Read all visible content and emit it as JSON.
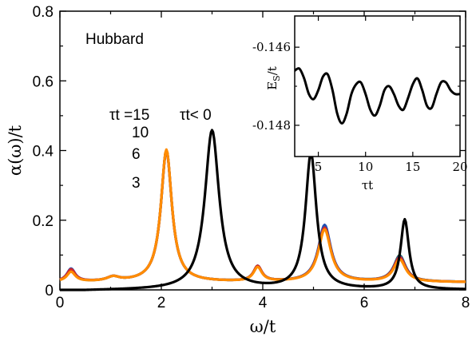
{
  "chart_data": [
    {
      "type": "line",
      "title": "",
      "xlabel": "ω/t",
      "ylabel": "α(ω)/t",
      "xlim": [
        0,
        8
      ],
      "ylim": [
        0,
        0.8
      ],
      "xticks": [
        "0",
        "2",
        "4",
        "6",
        "8"
      ],
      "yticks": [
        "0",
        "0.2",
        "0.4",
        "0.6",
        "0.8"
      ],
      "grid": false,
      "annotations": {
        "model": "Hubbard",
        "tau_label": "τt =15",
        "tau_values": [
          "10",
          "6",
          "3"
        ],
        "negative_label": "τt< 0"
      },
      "series_colors": [
        "#000000",
        "#2e7d32",
        "#1f4fb4",
        "#d62728",
        "#ff8c00"
      ],
      "series": [
        {
          "name": "τt< 0",
          "peaks": [
            [
              3.0,
              0.457,
              0.17
            ],
            [
              4.95,
              0.39,
              0.13
            ],
            [
              6.8,
              0.2,
              0.1
            ]
          ],
          "baseline": 0.0
        },
        {
          "name": "15",
          "peaks": [
            [
              0.22,
              0.03,
              0.1
            ],
            [
              1.05,
              0.012,
              0.15
            ],
            [
              2.1,
              0.378,
              0.13
            ],
            [
              3.9,
              0.043,
              0.1
            ],
            [
              5.22,
              0.16,
              0.15
            ],
            [
              6.7,
              0.075,
              0.14
            ]
          ],
          "baseline": 0.022
        },
        {
          "name": "10",
          "peaks": [
            [
              0.22,
              0.037,
              0.1
            ],
            [
              1.05,
              0.012,
              0.15
            ],
            [
              2.1,
              0.378,
              0.13
            ],
            [
              3.9,
              0.043,
              0.1
            ],
            [
              5.22,
              0.163,
              0.15
            ],
            [
              6.7,
              0.073,
              0.14
            ]
          ],
          "baseline": 0.022
        },
        {
          "name": "6",
          "peaks": [
            [
              0.22,
              0.035,
              0.1
            ],
            [
              1.05,
              0.012,
              0.15
            ],
            [
              2.1,
              0.378,
              0.13
            ],
            [
              3.9,
              0.043,
              0.1
            ],
            [
              5.22,
              0.155,
              0.15
            ],
            [
              6.7,
              0.07,
              0.14
            ]
          ],
          "baseline": 0.022
        },
        {
          "name": "3",
          "peaks": [
            [
              0.22,
              0.028,
              0.1
            ],
            [
              1.05,
              0.012,
              0.15
            ],
            [
              2.1,
              0.38,
              0.13
            ],
            [
              3.9,
              0.04,
              0.1
            ],
            [
              5.22,
              0.15,
              0.15
            ],
            [
              6.7,
              0.064,
              0.14
            ]
          ],
          "baseline": 0.022
        }
      ]
    },
    {
      "type": "line",
      "title": "",
      "xlabel": "τt",
      "ylabel": "E_S/t",
      "xlim": [
        2.5,
        20
      ],
      "ylim": [
        -0.1488,
        -0.1452
      ],
      "xticks": [
        "5",
        "10",
        "15",
        "20"
      ],
      "yticks": [
        "-0.146",
        "-0.148"
      ],
      "grid": false,
      "series": [
        {
          "name": "",
          "x": [
            2.5,
            3.0,
            3.5,
            4.0,
            4.5,
            5.0,
            5.5,
            6.0,
            6.5,
            7.0,
            7.5,
            8.0,
            8.5,
            9.0,
            9.5,
            10.0,
            10.5,
            11.0,
            11.5,
            12.0,
            12.5,
            13.0,
            13.5,
            14.0,
            14.5,
            15.0,
            15.5,
            16.0,
            16.5,
            17.0,
            17.5,
            18.0,
            18.5,
            19.0,
            19.5,
            20.0
          ],
          "y": [
            -0.1466,
            -0.14655,
            -0.1468,
            -0.1472,
            -0.14733,
            -0.1471,
            -0.14675,
            -0.1467,
            -0.1471,
            -0.1477,
            -0.14795,
            -0.1477,
            -0.1472,
            -0.14695,
            -0.1469,
            -0.1472,
            -0.1476,
            -0.14775,
            -0.1475,
            -0.1471,
            -0.147,
            -0.1472,
            -0.1475,
            -0.1476,
            -0.1473,
            -0.14695,
            -0.1468,
            -0.1471,
            -0.1475,
            -0.14755,
            -0.1472,
            -0.1469,
            -0.1469,
            -0.1471,
            -0.1472,
            -0.1472
          ]
        }
      ]
    }
  ]
}
